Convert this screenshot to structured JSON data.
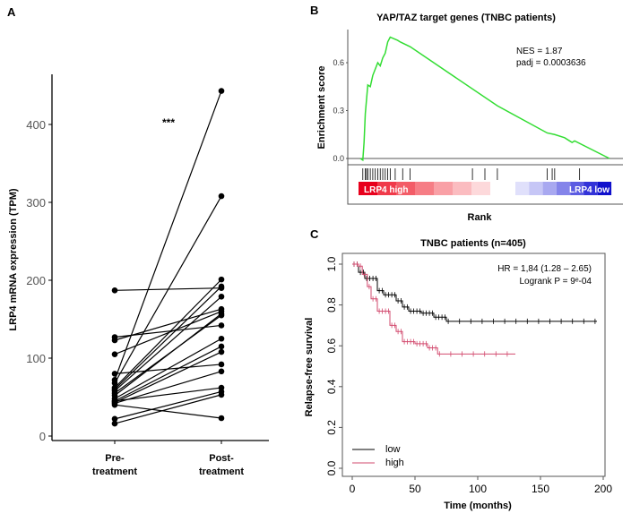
{
  "panel_labels": [
    "A",
    "B",
    "C"
  ],
  "chart_data": [
    {
      "type": "line",
      "panel": "A",
      "ylabel": "LRP4 mRNA expression (TPM)",
      "categories": [
        "Pre-\ntreatment",
        "Post-\ntreatment"
      ],
      "category_lines": [
        [
          "Pre-",
          "treatment"
        ],
        [
          "Post-",
          "treatment"
        ]
      ],
      "yticks": [
        0,
        100,
        200,
        300,
        400
      ],
      "ylim": [
        0,
        450
      ],
      "annotation": "***",
      "pairs": [
        [
          187,
          190
        ],
        [
          127,
          142
        ],
        [
          123,
          163
        ],
        [
          105,
          160
        ],
        [
          80,
          92
        ],
        [
          72,
          443
        ],
        [
          68,
          308
        ],
        [
          62,
          201
        ],
        [
          60,
          192
        ],
        [
          58,
          179
        ],
        [
          55,
          155
        ],
        [
          52,
          157
        ],
        [
          48,
          125
        ],
        [
          45,
          115
        ],
        [
          43,
          108
        ],
        [
          42,
          83
        ],
        [
          40,
          23
        ],
        [
          22,
          57
        ],
        [
          16,
          53
        ],
        [
          45,
          62
        ]
      ],
      "color": "#000000"
    },
    {
      "type": "line",
      "panel": "B",
      "title": "YAP/TAZ target genes (TNBC patients)",
      "ylabel": "Enrichment score",
      "xlabel": "Rank",
      "yticks": [
        "0.0",
        "0.3",
        "0.6"
      ],
      "ylim": [
        -0.02,
        0.8
      ],
      "annotations": [
        "NES = 1.87",
        "padj = 0.0003636"
      ],
      "bar_labels": [
        "LRP4 high",
        "LRP4 low"
      ],
      "curve_color": "#33dd33",
      "es_curve": [
        [
          0,
          0
        ],
        [
          1,
          -0.01
        ],
        [
          1.5,
          0.1
        ],
        [
          2,
          0.28
        ],
        [
          3,
          0.46
        ],
        [
          4,
          0.45
        ],
        [
          5,
          0.52
        ],
        [
          6,
          0.56
        ],
        [
          7,
          0.6
        ],
        [
          8,
          0.58
        ],
        [
          9,
          0.63
        ],
        [
          10,
          0.66
        ],
        [
          11,
          0.73
        ],
        [
          12,
          0.76
        ],
        [
          15,
          0.74
        ],
        [
          16,
          0.73
        ],
        [
          20,
          0.7
        ],
        [
          55,
          0.33
        ],
        [
          75,
          0.16
        ],
        [
          78,
          0.15
        ],
        [
          82,
          0.13
        ],
        [
          85,
          0.1
        ],
        [
          86,
          0.11
        ],
        [
          100,
          0
        ]
      ],
      "hit_ranks": [
        1,
        2,
        2.5,
        3,
        4,
        5,
        6,
        7,
        8,
        9,
        10,
        11,
        12,
        14,
        17,
        20,
        45,
        50,
        55,
        75,
        77,
        78,
        88
      ]
    },
    {
      "type": "line",
      "panel": "C",
      "title": "TNBC patients (n=405)",
      "xlabel": "Time (months)",
      "ylabel": "Relapse-free survival",
      "xticks": [
        0,
        50,
        100,
        150,
        200
      ],
      "yticks": [
        "0.0",
        "0.2",
        "0.4",
        "0.6",
        "0.8",
        "1.0"
      ],
      "xlim": [
        0,
        200
      ],
      "ylim": [
        0,
        1
      ],
      "annotations": [
        "HR = 1,84 (1.28 – 2.65)",
        "Logrank P = 9ᵉ-04"
      ],
      "legend_position": "bottom-left",
      "series": [
        {
          "name": "low",
          "color": "#000000",
          "steps": [
            [
              0,
              1
            ],
            [
              5,
              0.96
            ],
            [
              10,
              0.93
            ],
            [
              20,
              0.87
            ],
            [
              25,
              0.85
            ],
            [
              35,
              0.82
            ],
            [
              40,
              0.79
            ],
            [
              45,
              0.77
            ],
            [
              55,
              0.76
            ],
            [
              65,
              0.74
            ],
            [
              75,
              0.72
            ],
            [
              195,
              0.72
            ]
          ]
        },
        {
          "name": "high",
          "color": "#d24a6e",
          "steps": [
            [
              0,
              1
            ],
            [
              5,
              0.99
            ],
            [
              8,
              0.95
            ],
            [
              12,
              0.89
            ],
            [
              15,
              0.83
            ],
            [
              20,
              0.77
            ],
            [
              30,
              0.7
            ],
            [
              35,
              0.67
            ],
            [
              40,
              0.62
            ],
            [
              50,
              0.61
            ],
            [
              60,
              0.59
            ],
            [
              68,
              0.56
            ],
            [
              130,
              0.56
            ]
          ]
        }
      ]
    }
  ]
}
